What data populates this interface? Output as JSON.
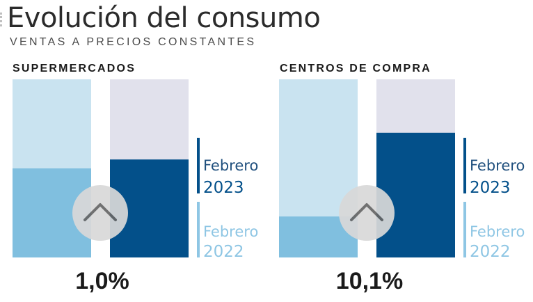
{
  "header": {
    "title": "Evolución del consumo",
    "subtitle": "VENTAS A PRECIOS CONSTANTES"
  },
  "colors": {
    "bar_2022_fill": "#80bfdf",
    "bar_2022_track": "#c9e3f0",
    "bar_2023_fill": "#03508a",
    "bar_2023_track": "#e1e1ec",
    "legend_2022": "#8ec6e4",
    "legend_2023": "#03508a",
    "badge": "#d9d9d9",
    "arrow": "#666666"
  },
  "legend": {
    "label_2023": "Febrero",
    "year_2023": "2023",
    "label_2022": "Febrero",
    "year_2022": "2022"
  },
  "chart_data": [
    {
      "type": "bar",
      "title": "SUPERMERCADOS",
      "categories": [
        "Febrero 2022",
        "Febrero 2023"
      ],
      "fill_fraction": [
        0.5,
        0.55
      ],
      "change": "1,0%",
      "change_icon": "chevron-up-icon"
    },
    {
      "type": "bar",
      "title": "CENTROS DE COMPRA",
      "categories": [
        "Febrero 2022",
        "Febrero 2023"
      ],
      "fill_fraction": [
        0.23,
        0.7
      ],
      "change": "10,1%",
      "change_icon": "chevron-up-icon"
    }
  ]
}
